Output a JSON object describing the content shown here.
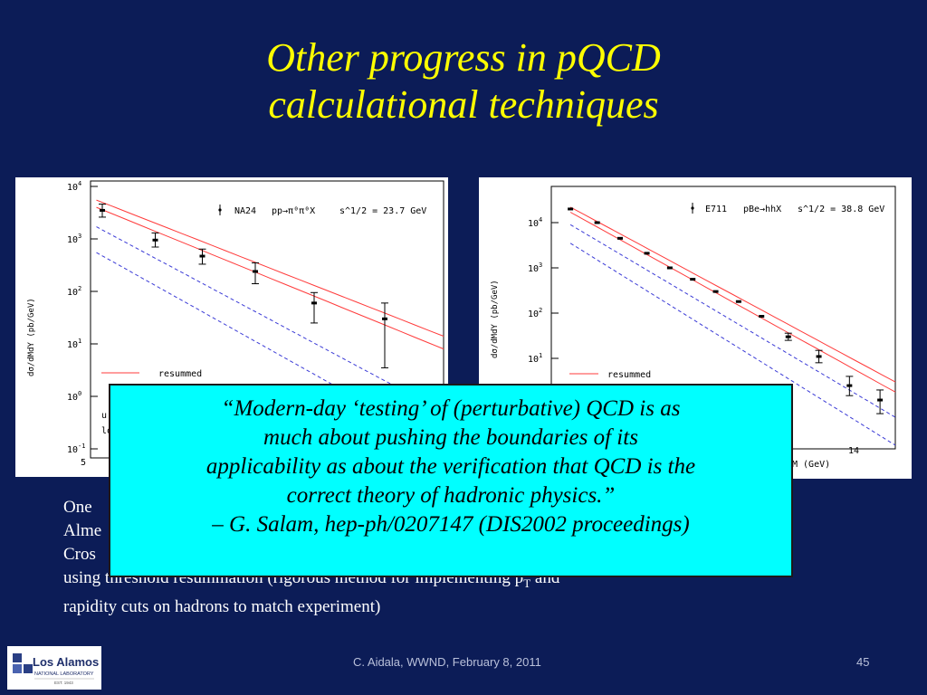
{
  "slide": {
    "title_line1": "Other progress in pQCD",
    "title_line2": "calculational techniques",
    "body_lines": {
      "line1": "One",
      "line2": "Alme",
      "line3": "Cros",
      "line4a": "using threshold resummation (rigorous method for implementing p",
      "line4_sub": "T",
      "line4b": " and",
      "line5": "rapidity cuts on hadrons to match experiment)"
    },
    "quote": {
      "line1": "“Modern-day ‘testing’ of (perturbative) QCD is as",
      "line2": "much about pushing the boundaries of its",
      "line3": "applicability as about the verification that QCD is the",
      "line4": "correct theory of hadronic physics.”",
      "line5": "– G. Salam, hep-ph/0207147 (DIS2002 proceedings)"
    },
    "footer_center": "C. Aidala, WWND, February 8, 2011",
    "footer_page": "45",
    "logo": {
      "name": "Los Alamos",
      "sub": "NATIONAL LABORATORY",
      "est": "EST. 1943"
    },
    "colors": {
      "background": "#0c1c57",
      "title": "#ffff00",
      "quote_box": "#00ffff",
      "resummed_curve": "#ff3b3b",
      "nlo_curve": "#3a3ad6"
    }
  },
  "chart_data": [
    {
      "type": "scatter",
      "legend_entry": "NA24",
      "process": "pp→π⁰π⁰X",
      "energy": "s^1/2 = 23.7 GeV",
      "ylabel": "dσ/dMdY (pb/GeV)",
      "y_scale": "log",
      "ylim": [
        0.1,
        10000
      ],
      "xlim": [
        5,
        11
      ],
      "y_ticks": [
        "10^4",
        "10^3",
        "10^2",
        "10^1",
        "10^0",
        "10^-1"
      ],
      "x_ticks": [
        "5"
      ],
      "curve_label": "resummed",
      "partial_labels": [
        "u",
        "lo"
      ],
      "points": [
        {
          "x": 5.2,
          "y": 3500,
          "err_lo": 2600,
          "err_hi": 4600
        },
        {
          "x": 6.1,
          "y": 950,
          "err_lo": 700,
          "err_hi": 1300
        },
        {
          "x": 6.9,
          "y": 470,
          "err_lo": 330,
          "err_hi": 640
        },
        {
          "x": 7.8,
          "y": 240,
          "err_lo": 140,
          "err_hi": 350
        },
        {
          "x": 8.8,
          "y": 60,
          "err_lo": 25,
          "err_hi": 95
        },
        {
          "x": 10.0,
          "y": 30,
          "err_lo": 3.5,
          "err_hi": 60
        }
      ],
      "series": [
        {
          "style": "solid-red",
          "x": [
            5.1,
            11
          ],
          "y": [
            5500,
            14
          ]
        },
        {
          "style": "solid-red",
          "x": [
            5.1,
            11
          ],
          "y": [
            4000,
            8
          ]
        },
        {
          "style": "dashed-blue",
          "x": [
            5.1,
            11
          ],
          "y": [
            1700,
            0.5
          ]
        },
        {
          "style": "dashed-blue",
          "x": [
            5.1,
            11
          ],
          "y": [
            550,
            0.11
          ]
        }
      ]
    },
    {
      "type": "scatter",
      "legend_entry": "E711",
      "process": "pBe→hhX",
      "energy": "s^1/2 = 38.8 GeV",
      "ylabel": "dσ/dMdY (pb/GeV)",
      "y_scale": "log",
      "ylim": [
        0.1,
        100000
      ],
      "xlim": [
        6,
        15
      ],
      "y_ticks": [
        "10^4",
        "10^3",
        "10^2",
        "10^1"
      ],
      "x_ticks": [
        "14"
      ],
      "xlabel_partial": "M (GeV)",
      "curve_label": "resummed",
      "points": [
        {
          "x": 6.5,
          "y": 20000
        },
        {
          "x": 7.2,
          "y": 10000
        },
        {
          "x": 7.8,
          "y": 4500
        },
        {
          "x": 8.5,
          "y": 2100
        },
        {
          "x": 9.1,
          "y": 1000
        },
        {
          "x": 9.7,
          "y": 560
        },
        {
          "x": 10.3,
          "y": 300
        },
        {
          "x": 10.9,
          "y": 180
        },
        {
          "x": 11.5,
          "y": 85
        },
        {
          "x": 12.2,
          "y": 30,
          "err_lo": 25,
          "err_hi": 36
        },
        {
          "x": 13.0,
          "y": 11,
          "err_lo": 8,
          "err_hi": 15
        },
        {
          "x": 13.8,
          "y": 2.5,
          "err_lo": 1.5,
          "err_hi": 4
        },
        {
          "x": 14.6,
          "y": 1.2,
          "err_lo": 0.6,
          "err_hi": 2
        }
      ],
      "series": [
        {
          "style": "solid-red",
          "x": [
            6.5,
            15
          ],
          "y": [
            22000,
            3
          ]
        },
        {
          "style": "solid-red",
          "x": [
            6.5,
            15
          ],
          "y": [
            17000,
            1.8
          ]
        },
        {
          "style": "dashed-blue",
          "x": [
            6.5,
            15
          ],
          "y": [
            9000,
            0.5
          ]
        },
        {
          "style": "dashed-blue",
          "x": [
            6.5,
            15
          ],
          "y": [
            3500,
            0.12
          ]
        }
      ]
    }
  ]
}
